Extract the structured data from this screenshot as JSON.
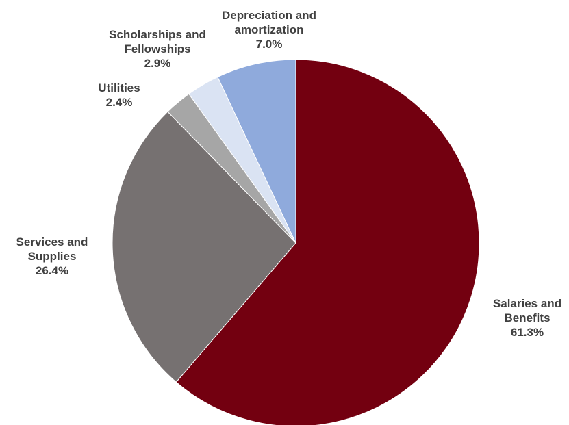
{
  "chart_data": {
    "type": "pie",
    "title": "",
    "start_angle_deg": 0,
    "direction": "clockwise",
    "slices": [
      {
        "label": "Salaries and\nBenefits",
        "value": 61.3,
        "display": "61.3%",
        "color": "#730010"
      },
      {
        "label": "Services and\nSupplies",
        "value": 26.4,
        "display": "26.4%",
        "color": "#767171"
      },
      {
        "label": "Utilities",
        "value": 2.4,
        "display": "2.4%",
        "color": "#a6a6a6"
      },
      {
        "label": "Scholarships and\nFellowships",
        "value": 2.9,
        "display": "2.9%",
        "color": "#dae3f3"
      },
      {
        "label": "Depreciation and\namortization",
        "value": 7.0,
        "display": "7.0%",
        "color": "#8faadc"
      }
    ],
    "legend": "none",
    "data_labels": "outside"
  }
}
